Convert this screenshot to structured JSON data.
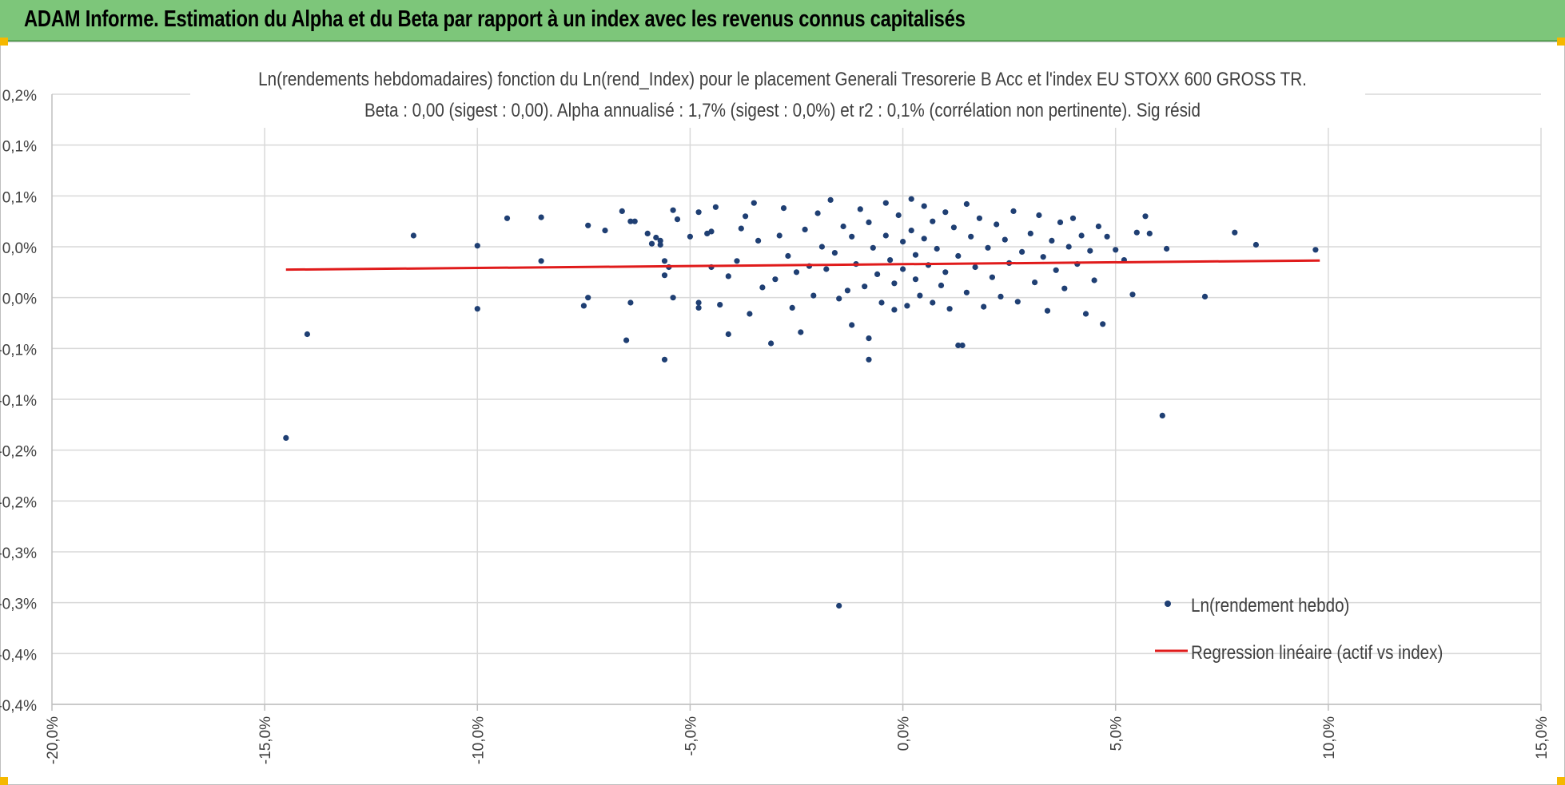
{
  "header": {
    "title": "ADAM Informe. Estimation du Alpha et du Beta par rapport à un index avec les revenus connus capitalisés"
  },
  "chart_data": {
    "type": "scatter",
    "title_line1": "Ln(rendements hebdomadaires) fonction du Ln(rend_Index) pour le placement Generali Tresorerie B Acc et l'index EU STOXX 600 GROSS TR.",
    "title_line2": "Beta : 0,00 (sigest : 0,00).  Alpha annualisé : 1,7% (sigest : 0,0%) et r2 : 0,1% (corrélation non pertinente). Sig résid",
    "xlim": [
      -0.2,
      0.15
    ],
    "ylim": [
      -0.004,
      0.002
    ],
    "x_ticks": [
      -0.2,
      -0.15,
      -0.1,
      -0.05,
      0.0,
      0.05,
      0.1,
      0.15
    ],
    "x_tick_labels": [
      "-20,0%",
      "-15,0%",
      "-10,0%",
      "-5,0%",
      "0,0%",
      "5,0%",
      "10,0%",
      "15,0%"
    ],
    "y_ticks": [
      0.002,
      0.0015,
      0.001,
      0.0005,
      0.0,
      -0.0005,
      -0.001,
      -0.0015,
      -0.002,
      -0.0025,
      -0.003,
      -0.0035,
      -0.004
    ],
    "y_tick_labels": [
      "0,2%",
      "0,1%",
      "0,1%",
      "0,0%",
      "0,0%",
      "-0,1%",
      "-0,1%",
      "-0,2%",
      "-0,2%",
      "-0,3%",
      "-0,3%",
      "-0,4%",
      "-0,4%"
    ],
    "grid": true,
    "legend_position": "bottom-right",
    "series": [
      {
        "name": "Ln(rendement hebdo)",
        "color": "#1f3f73",
        "points": [
          [
            -0.145,
            -0.00138
          ],
          [
            -0.14,
            -0.00036
          ],
          [
            -0.115,
            0.00061
          ],
          [
            -0.1,
            0.00051
          ],
          [
            -0.1,
            -0.00011
          ],
          [
            -0.093,
            0.00078
          ],
          [
            -0.085,
            0.00079
          ],
          [
            -0.085,
            0.00036
          ],
          [
            -0.075,
            -8e-05
          ],
          [
            -0.074,
            0.00071
          ],
          [
            -0.074,
            0.0
          ],
          [
            -0.07,
            0.00066
          ],
          [
            -0.066,
            0.00085
          ],
          [
            -0.065,
            -0.00042
          ],
          [
            -0.064,
            0.00075
          ],
          [
            -0.064,
            -5e-05
          ],
          [
            -0.063,
            0.00075
          ],
          [
            -0.06,
            0.00063
          ],
          [
            -0.059,
            0.00053
          ],
          [
            -0.058,
            0.00059
          ],
          [
            -0.057,
            0.00056
          ],
          [
            -0.057,
            0.00052
          ],
          [
            -0.056,
            0.00036
          ],
          [
            -0.056,
            0.00022
          ],
          [
            -0.056,
            -0.00061
          ],
          [
            -0.055,
            0.0003
          ],
          [
            -0.054,
            0.00086
          ],
          [
            -0.054,
            0.0
          ],
          [
            -0.053,
            0.00077
          ],
          [
            -0.05,
            0.0006
          ],
          [
            -0.048,
            0.00084
          ],
          [
            -0.048,
            -5e-05
          ],
          [
            -0.048,
            -0.0001
          ],
          [
            -0.046,
            0.00063
          ],
          [
            -0.045,
            0.00065
          ],
          [
            -0.045,
            0.0003
          ],
          [
            -0.044,
            0.00089
          ],
          [
            -0.043,
            -7e-05
          ],
          [
            -0.041,
            0.00021
          ],
          [
            -0.041,
            -0.00036
          ],
          [
            -0.039,
            0.00036
          ],
          [
            -0.038,
            0.00068
          ],
          [
            -0.037,
            0.0008
          ],
          [
            -0.036,
            -0.00016
          ],
          [
            -0.035,
            0.00093
          ],
          [
            -0.034,
            0.00056
          ],
          [
            -0.033,
            0.0001
          ],
          [
            -0.031,
            -0.00045
          ],
          [
            -0.03,
            0.00018
          ],
          [
            -0.029,
            0.00061
          ],
          [
            -0.028,
            0.00088
          ],
          [
            -0.027,
            0.00041
          ],
          [
            -0.026,
            -0.0001
          ],
          [
            -0.025,
            0.00025
          ],
          [
            -0.024,
            -0.00034
          ],
          [
            -0.023,
            0.00067
          ],
          [
            -0.022,
            0.00031
          ],
          [
            -0.021,
            2e-05
          ],
          [
            -0.02,
            0.00083
          ],
          [
            -0.019,
            0.0005
          ],
          [
            -0.018,
            0.00028
          ],
          [
            -0.017,
            0.00096
          ],
          [
            -0.016,
            0.00044
          ],
          [
            -0.015,
            -1e-05
          ],
          [
            -0.014,
            0.0007
          ],
          [
            -0.013,
            7e-05
          ],
          [
            -0.012,
            0.0006
          ],
          [
            -0.012,
            -0.00027
          ],
          [
            -0.011,
            0.00033
          ],
          [
            -0.01,
            0.00087
          ],
          [
            -0.009,
            0.00011
          ],
          [
            -0.008,
            0.00074
          ],
          [
            -0.008,
            -0.0004
          ],
          [
            -0.007,
            0.00049
          ],
          [
            -0.006,
            0.00023
          ],
          [
            -0.005,
            -5e-05
          ],
          [
            -0.004,
            0.00093
          ],
          [
            -0.004,
            0.00061
          ],
          [
            -0.003,
            0.00037
          ],
          [
            -0.002,
            0.00014
          ],
          [
            -0.002,
            -0.00012
          ],
          [
            -0.001,
            0.00081
          ],
          [
            0.0,
            0.00055
          ],
          [
            0.0,
            0.00028
          ],
          [
            0.001,
            -8e-05
          ],
          [
            0.002,
            0.00097
          ],
          [
            0.002,
            0.00066
          ],
          [
            0.003,
            0.00042
          ],
          [
            0.003,
            0.00018
          ],
          [
            0.004,
            2e-05
          ],
          [
            0.005,
            0.0009
          ],
          [
            0.005,
            0.00058
          ],
          [
            0.006,
            0.00032
          ],
          [
            0.007,
            -5e-05
          ],
          [
            0.007,
            0.00075
          ],
          [
            0.008,
            0.00048
          ],
          [
            0.009,
            0.00012
          ],
          [
            0.01,
            0.00084
          ],
          [
            0.01,
            0.00025
          ],
          [
            0.011,
            -0.00011
          ],
          [
            0.012,
            0.00069
          ],
          [
            0.013,
            0.00041
          ],
          [
            0.014,
            -0.00047
          ],
          [
            0.015,
            0.00092
          ],
          [
            0.015,
            5e-05
          ],
          [
            0.016,
            0.0006
          ],
          [
            0.017,
            0.0003
          ],
          [
            0.018,
            0.00078
          ],
          [
            0.019,
            -9e-05
          ],
          [
            0.02,
            0.00049
          ],
          [
            0.021,
            0.0002
          ],
          [
            0.022,
            0.00072
          ],
          [
            0.023,
            1e-05
          ],
          [
            0.024,
            0.00057
          ],
          [
            0.025,
            0.00034
          ],
          [
            0.026,
            0.00085
          ],
          [
            0.027,
            -4e-05
          ],
          [
            0.028,
            0.00045
          ],
          [
            0.03,
            0.00063
          ],
          [
            0.031,
            0.00015
          ],
          [
            0.032,
            0.00081
          ],
          [
            0.033,
            0.0004
          ],
          [
            0.034,
            -0.00013
          ],
          [
            0.035,
            0.00056
          ],
          [
            0.036,
            0.00027
          ],
          [
            0.037,
            0.00074
          ],
          [
            0.038,
            9e-05
          ],
          [
            0.039,
            0.0005
          ],
          [
            0.04,
            0.00078
          ],
          [
            0.041,
            0.00033
          ],
          [
            0.042,
            0.00061
          ],
          [
            0.043,
            -0.00016
          ],
          [
            0.044,
            0.00046
          ],
          [
            0.045,
            0.00017
          ],
          [
            0.046,
            0.0007
          ],
          [
            0.047,
            -0.00026
          ],
          [
            0.048,
            0.0006
          ],
          [
            0.05,
            0.00047
          ],
          [
            0.052,
            0.00037
          ],
          [
            0.054,
            3e-05
          ],
          [
            0.055,
            0.00064
          ],
          [
            0.057,
            0.0008
          ],
          [
            0.058,
            0.00063
          ],
          [
            0.061,
            -0.00116
          ],
          [
            0.062,
            0.00048
          ],
          [
            0.071,
            1e-05
          ],
          [
            0.078,
            0.00064
          ],
          [
            0.083,
            0.00052
          ],
          [
            0.097,
            0.00047
          ],
          [
            -0.015,
            -0.00303
          ],
          [
            -0.008,
            -0.00061
          ],
          [
            0.013,
            -0.00047
          ]
        ]
      }
    ],
    "regression": {
      "name": "Regression linéaire (actif vs index)",
      "color": "#e01b1b",
      "x": [
        -0.145,
        0.098
      ],
      "y": [
        0.000275,
        0.000365
      ]
    }
  }
}
